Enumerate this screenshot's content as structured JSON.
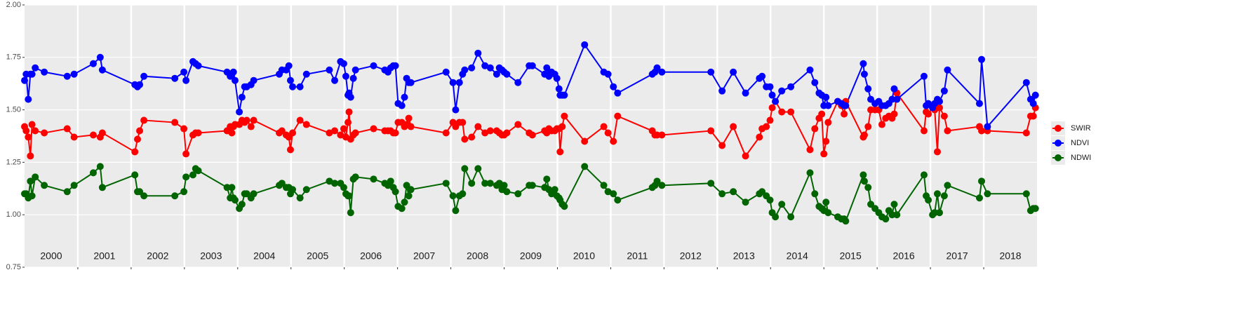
{
  "chart_data": {
    "type": "line",
    "x": [
      2000.0,
      2000.03,
      2000.07,
      2000.11,
      2000.14,
      2000.2,
      2000.37,
      2000.8,
      2000.93,
      2001.29,
      2001.42,
      2001.46,
      2002.07,
      2002.12,
      2002.16,
      2002.24,
      2002.82,
      2002.99,
      2003.03,
      2003.16,
      2003.21,
      2003.26,
      2003.8,
      2003.86,
      2003.89,
      2003.92,
      2003.95,
      2004.03,
      2004.08,
      2004.13,
      2004.17,
      2004.25,
      2004.3,
      2004.78,
      2004.83,
      2004.91,
      2004.96,
      2004.99,
      2005.03,
      2005.17,
      2005.29,
      2005.72,
      2005.82,
      2005.93,
      2005.99,
      2006.03,
      2006.07,
      2006.09,
      2006.12,
      2006.17,
      2006.21,
      2006.55,
      2006.76,
      2006.82,
      2006.87,
      2006.92,
      2006.96,
      2007.01,
      2007.08,
      2007.13,
      2007.17,
      2007.21,
      2007.25,
      2007.91,
      2008.04,
      2008.09,
      2008.16,
      2008.22,
      2008.26,
      2008.39,
      2008.51,
      2008.64,
      2008.74,
      2008.86,
      2008.91,
      2008.96,
      2009.0,
      2009.05,
      2009.26,
      2009.47,
      2009.53,
      2009.76,
      2009.8,
      2009.84,
      2009.89,
      2009.95,
      2009.99,
      2010.03,
      2010.05,
      2010.09,
      2010.13,
      2010.51,
      2010.87,
      2010.95,
      2011.05,
      2011.13,
      2011.78,
      2011.83,
      2011.87,
      2011.96,
      2012.88,
      2013.09,
      2013.3,
      2013.53,
      2013.79,
      2013.84,
      2013.92,
      2013.99,
      2014.03,
      2014.09,
      2014.21,
      2014.38,
      2014.74,
      2014.83,
      2014.91,
      2014.96,
      2015.0,
      2015.04,
      2015.08,
      2015.26,
      2015.33,
      2015.38,
      2015.41,
      2015.74,
      2015.76,
      2015.83,
      2015.88,
      2015.96,
      2016.03,
      2016.09,
      2016.16,
      2016.22,
      2016.28,
      2016.32,
      2016.37,
      2016.88,
      2016.92,
      2016.96,
      2017.04,
      2017.08,
      2017.13,
      2017.17,
      2017.26,
      2017.32,
      2017.92,
      2017.96,
      2018.07,
      2018.8,
      2018.88,
      2018.93,
      2018.97
    ],
    "series": [
      {
        "name": "SWIR",
        "color": "#ff0000",
        "values": [
          1.42,
          1.4,
          1.37,
          1.28,
          1.43,
          1.4,
          1.39,
          1.41,
          1.37,
          1.38,
          1.37,
          1.39,
          1.3,
          1.36,
          1.4,
          1.45,
          1.44,
          1.41,
          1.29,
          1.38,
          1.39,
          1.39,
          1.4,
          1.42,
          1.39,
          1.42,
          1.43,
          1.43,
          1.45,
          1.44,
          1.45,
          1.42,
          1.45,
          1.39,
          1.4,
          1.38,
          1.37,
          1.31,
          1.39,
          1.45,
          1.43,
          1.39,
          1.4,
          1.38,
          1.41,
          1.37,
          1.44,
          1.49,
          1.36,
          1.38,
          1.39,
          1.41,
          1.4,
          1.4,
          1.4,
          1.39,
          1.39,
          1.44,
          1.44,
          1.42,
          1.43,
          1.46,
          1.42,
          1.39,
          1.44,
          1.42,
          1.44,
          1.44,
          1.36,
          1.37,
          1.42,
          1.39,
          1.4,
          1.4,
          1.39,
          1.38,
          1.38,
          1.39,
          1.43,
          1.39,
          1.38,
          1.4,
          1.39,
          1.41,
          1.4,
          1.4,
          1.41,
          1.41,
          1.3,
          1.42,
          1.47,
          1.35,
          1.42,
          1.39,
          1.35,
          1.47,
          1.4,
          1.38,
          1.38,
          1.38,
          1.4,
          1.33,
          1.42,
          1.28,
          1.37,
          1.41,
          1.42,
          1.45,
          1.51,
          1.54,
          1.49,
          1.49,
          1.31,
          1.41,
          1.46,
          1.48,
          1.29,
          1.35,
          1.44,
          1.54,
          1.52,
          1.48,
          1.54,
          1.37,
          1.38,
          1.42,
          1.5,
          1.5,
          1.5,
          1.43,
          1.46,
          1.47,
          1.46,
          1.48,
          1.58,
          1.4,
          1.49,
          1.48,
          1.51,
          1.5,
          1.3,
          1.51,
          1.47,
          1.4,
          1.42,
          1.4,
          1.4,
          1.39,
          1.47,
          1.47,
          1.51
        ]
      },
      {
        "name": "NDVI",
        "color": "#0000ff",
        "values": [
          1.64,
          1.67,
          1.55,
          1.67,
          1.67,
          1.7,
          1.68,
          1.66,
          1.67,
          1.72,
          1.75,
          1.69,
          1.62,
          1.61,
          1.62,
          1.66,
          1.65,
          1.68,
          1.64,
          1.73,
          1.72,
          1.71,
          1.68,
          1.66,
          1.67,
          1.68,
          1.64,
          1.49,
          1.56,
          1.61,
          1.61,
          1.62,
          1.64,
          1.67,
          1.69,
          1.69,
          1.71,
          1.64,
          1.61,
          1.61,
          1.67,
          1.69,
          1.64,
          1.73,
          1.72,
          1.66,
          1.57,
          1.58,
          1.56,
          1.65,
          1.69,
          1.71,
          1.69,
          1.68,
          1.7,
          1.71,
          1.71,
          1.53,
          1.52,
          1.56,
          1.65,
          1.63,
          1.63,
          1.68,
          1.63,
          1.5,
          1.63,
          1.67,
          1.69,
          1.7,
          1.77,
          1.71,
          1.7,
          1.67,
          1.7,
          1.69,
          1.68,
          1.67,
          1.63,
          1.71,
          1.71,
          1.67,
          1.7,
          1.66,
          1.68,
          1.67,
          1.65,
          1.6,
          1.57,
          1.57,
          1.57,
          1.81,
          1.68,
          1.67,
          1.61,
          1.58,
          1.67,
          1.68,
          1.7,
          1.68,
          1.68,
          1.59,
          1.68,
          1.58,
          1.65,
          1.66,
          1.61,
          1.61,
          1.57,
          1.54,
          1.59,
          1.61,
          1.69,
          1.63,
          1.58,
          1.57,
          1.52,
          1.56,
          1.52,
          1.54,
          1.53,
          1.52,
          1.52,
          1.72,
          1.67,
          1.6,
          1.55,
          1.53,
          1.54,
          1.52,
          1.52,
          1.53,
          1.55,
          1.6,
          1.55,
          1.66,
          1.52,
          1.53,
          1.51,
          1.53,
          1.55,
          1.54,
          1.59,
          1.69,
          1.53,
          1.74,
          1.42,
          1.63,
          1.55,
          1.53,
          1.57
        ]
      },
      {
        "name": "NDWI",
        "color": "#006400",
        "values": [
          1.1,
          1.1,
          1.08,
          1.16,
          1.09,
          1.18,
          1.14,
          1.11,
          1.14,
          1.2,
          1.23,
          1.13,
          1.19,
          1.11,
          1.11,
          1.09,
          1.09,
          1.11,
          1.18,
          1.19,
          1.22,
          1.21,
          1.13,
          1.08,
          1.13,
          1.08,
          1.07,
          1.03,
          1.05,
          1.1,
          1.1,
          1.08,
          1.1,
          1.14,
          1.15,
          1.13,
          1.13,
          1.1,
          1.12,
          1.08,
          1.12,
          1.16,
          1.15,
          1.15,
          1.13,
          1.1,
          1.09,
          1.09,
          1.01,
          1.17,
          1.18,
          1.17,
          1.15,
          1.14,
          1.16,
          1.13,
          1.11,
          1.04,
          1.03,
          1.06,
          1.14,
          1.09,
          1.12,
          1.15,
          1.09,
          1.02,
          1.09,
          1.1,
          1.22,
          1.15,
          1.22,
          1.15,
          1.15,
          1.14,
          1.15,
          1.12,
          1.14,
          1.11,
          1.1,
          1.14,
          1.14,
          1.13,
          1.17,
          1.12,
          1.1,
          1.12,
          1.09,
          1.08,
          1.07,
          1.05,
          1.04,
          1.23,
          1.14,
          1.11,
          1.1,
          1.07,
          1.13,
          1.14,
          1.16,
          1.14,
          1.15,
          1.1,
          1.11,
          1.06,
          1.1,
          1.11,
          1.09,
          1.07,
          1.01,
          0.99,
          1.05,
          0.99,
          1.2,
          1.1,
          1.04,
          1.03,
          1.02,
          1.06,
          1.01,
          0.99,
          0.98,
          0.98,
          0.97,
          1.19,
          1.16,
          1.13,
          1.05,
          1.03,
          1.01,
          0.99,
          0.98,
          1.02,
          1.0,
          1.05,
          1.0,
          1.19,
          1.09,
          1.07,
          1.0,
          1.01,
          1.1,
          1.01,
          1.09,
          1.14,
          1.08,
          1.16,
          1.1,
          1.1,
          1.02,
          1.03,
          1.03
        ]
      }
    ],
    "xlim": [
      2000,
      2019
    ],
    "xticks": [
      2001,
      2002,
      2003,
      2004,
      2005,
      2006,
      2007,
      2008,
      2009,
      2010,
      2011,
      2012,
      2013,
      2014,
      2015,
      2016,
      2017,
      2018
    ],
    "ylim": [
      0.75,
      2
    ],
    "yticks": [
      {
        "value": 0.75,
        "label": "0.75"
      },
      {
        "value": 1,
        "label": "1.00"
      },
      {
        "value": 1.25,
        "label": "1.25"
      },
      {
        "value": 1.5,
        "label": "1.50"
      },
      {
        "value": 1.75,
        "label": "1.75"
      },
      {
        "value": 2,
        "label": "2.00"
      }
    ],
    "grid": true,
    "annotations": [
      {
        "x": 2000.5,
        "y": 0.8,
        "text": "2000"
      },
      {
        "x": 2001.5,
        "y": 0.8,
        "text": "2001"
      },
      {
        "x": 2002.5,
        "y": 0.8,
        "text": "2002"
      },
      {
        "x": 2003.5,
        "y": 0.8,
        "text": "2003"
      },
      {
        "x": 2004.5,
        "y": 0.8,
        "text": "2004"
      },
      {
        "x": 2005.5,
        "y": 0.8,
        "text": "2005"
      },
      {
        "x": 2006.5,
        "y": 0.8,
        "text": "2006"
      },
      {
        "x": 2007.5,
        "y": 0.8,
        "text": "2007"
      },
      {
        "x": 2008.5,
        "y": 0.8,
        "text": "2008"
      },
      {
        "x": 2009.5,
        "y": 0.8,
        "text": "2009"
      },
      {
        "x": 2010.5,
        "y": 0.8,
        "text": "2010"
      },
      {
        "x": 2011.5,
        "y": 0.8,
        "text": "2011"
      },
      {
        "x": 2012.5,
        "y": 0.8,
        "text": "2012"
      },
      {
        "x": 2013.5,
        "y": 0.8,
        "text": "2013"
      },
      {
        "x": 2014.5,
        "y": 0.8,
        "text": "2014"
      },
      {
        "x": 2015.5,
        "y": 0.8,
        "text": "2015"
      },
      {
        "x": 2016.5,
        "y": 0.8,
        "text": "2016"
      },
      {
        "x": 2017.5,
        "y": 0.8,
        "text": "2017"
      },
      {
        "x": 2018.5,
        "y": 0.8,
        "text": "2018"
      }
    ],
    "legend": "right"
  }
}
